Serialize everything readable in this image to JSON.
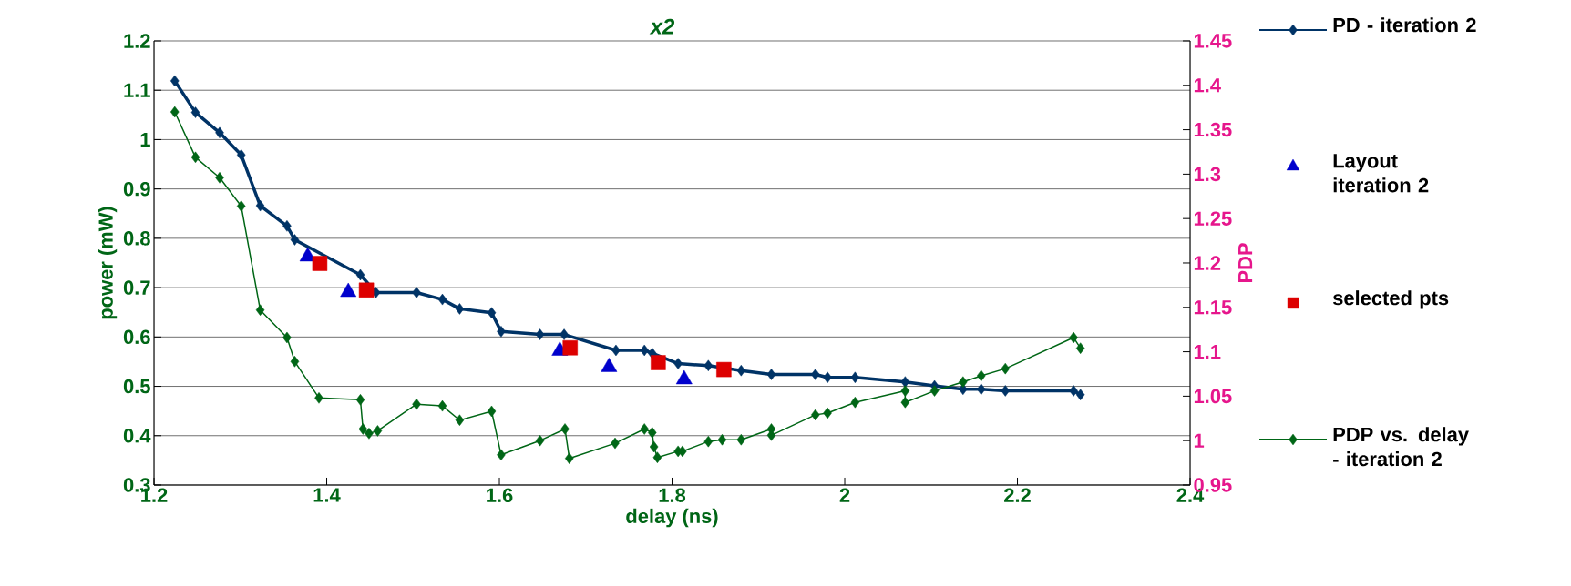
{
  "chart_data": {
    "type": "line",
    "title": "x2",
    "xlabel": "delay (ns)",
    "ylabel": "power (mW)",
    "y2label": "PDP",
    "xlim": [
      1.2,
      2.4
    ],
    "xticks": [
      1.2,
      1.4,
      1.6,
      1.8,
      2,
      2.2,
      2.4
    ],
    "ylim": [
      0.3,
      1.2
    ],
    "yticks": [
      0.3,
      0.4,
      0.5,
      0.6,
      0.7,
      0.8,
      0.9,
      1,
      1.1,
      1.2
    ],
    "y2lim": [
      0.95,
      1.45
    ],
    "y2ticks": [
      0.95,
      1,
      1.05,
      1.1,
      1.15,
      1.2,
      1.25,
      1.3,
      1.35,
      1.4,
      1.45
    ],
    "grid": "y",
    "legend": "right",
    "series": [
      {
        "name": "PD - iteration 2",
        "marker": "diamond",
        "color": "#003366",
        "x": [
          1.224,
          1.248,
          1.276,
          1.301,
          1.323,
          1.354,
          1.363,
          1.439,
          1.457,
          1.504,
          1.534,
          1.554,
          1.591,
          1.602,
          1.647,
          1.675,
          1.735,
          1.768,
          1.777,
          1.807,
          1.842,
          1.88,
          1.915,
          1.966,
          1.98,
          2.012,
          2.07,
          2.104,
          2.137,
          2.158,
          2.186,
          2.265,
          2.273
        ],
        "values": [
          1.119,
          1.055,
          1.014,
          0.969,
          0.866,
          0.825,
          0.797,
          0.726,
          0.69,
          0.69,
          0.676,
          0.657,
          0.649,
          0.611,
          0.605,
          0.605,
          0.573,
          0.573,
          0.567,
          0.546,
          0.542,
          0.532,
          0.524,
          0.524,
          0.518,
          0.518,
          0.509,
          0.501,
          0.494,
          0.494,
          0.491,
          0.491,
          0.483
        ]
      },
      {
        "name": "Layout iteration 2",
        "type": "scatter",
        "marker": "triangle",
        "color": "#0000cc",
        "x": [
          1.378,
          1.425,
          1.67,
          1.727,
          1.814
        ],
        "values": [
          0.763,
          0.691,
          0.572,
          0.539,
          0.514
        ]
      },
      {
        "name": "selected pts",
        "type": "scatter",
        "marker": "square",
        "color": "#dd0000",
        "x": [
          1.392,
          1.446,
          1.682,
          1.784,
          1.86
        ],
        "values": [
          0.749,
          0.695,
          0.578,
          0.548,
          0.534
        ]
      },
      {
        "name": "PDP vs. delay - iteration 2",
        "marker": "diamond",
        "color": "#006616",
        "axis": "y2",
        "x": [
          1.224,
          1.248,
          1.276,
          1.301,
          1.323,
          1.354,
          1.363,
          1.391,
          1.439,
          1.442,
          1.449,
          1.459,
          1.504,
          1.534,
          1.554,
          1.591,
          1.602,
          1.647,
          1.676,
          1.681,
          1.734,
          1.768,
          1.777,
          1.779,
          1.783,
          1.807,
          1.812,
          1.842,
          1.858,
          1.88,
          1.915,
          1.915,
          1.966,
          1.98,
          2.012,
          2.07,
          2.07,
          2.104,
          2.137,
          2.158,
          2.186,
          2.265,
          2.273
        ],
        "values": [
          1.37,
          1.319,
          1.296,
          1.264,
          1.147,
          1.116,
          1.089,
          1.048,
          1.046,
          1.013,
          1.008,
          1.011,
          1.041,
          1.039,
          1.023,
          1.033,
          0.984,
          1.0,
          1.013,
          0.98,
          0.997,
          1.013,
          1.009,
          0.993,
          0.981,
          0.988,
          0.988,
          0.999,
          1.001,
          1.001,
          1.013,
          1.006,
          1.029,
          1.031,
          1.043,
          1.056,
          1.043,
          1.056,
          1.066,
          1.073,
          1.081,
          1.116,
          1.104
        ]
      }
    ]
  }
}
